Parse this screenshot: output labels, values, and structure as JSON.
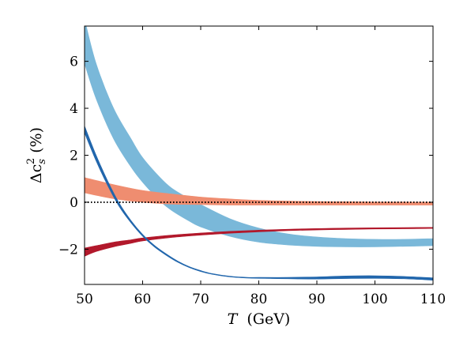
{
  "chart_data": {
    "type": "area",
    "title": "",
    "xlabel_var": "T",
    "xlabel_unit": "(GeV)",
    "ylabel_main": "Δc",
    "ylabel_sup": "2",
    "ylabel_sub": "s",
    "ylabel_unit": "(%)",
    "xlim": [
      50,
      110
    ],
    "ylim": [
      -3.5,
      7.5
    ],
    "xticks": [
      50,
      60,
      70,
      80,
      90,
      100,
      110
    ],
    "xtick_labels": [
      "50",
      "60",
      "70",
      "80",
      "90",
      "100",
      "110"
    ],
    "yticks": [
      -2,
      0,
      2,
      4,
      6
    ],
    "ytick_labels": [
      "−2",
      "0",
      "2",
      "4",
      "6"
    ],
    "grid": false,
    "reference_line": {
      "y": 0,
      "style": "dotted",
      "color": "#000000"
    },
    "series": [
      {
        "kind": "band",
        "color": "#7ab8d9",
        "x": [
          50,
          52,
          55,
          58,
          60,
          63,
          65,
          68,
          70,
          75,
          80,
          85,
          90,
          95,
          100,
          105,
          110
        ],
        "lower": [
          5.9,
          4.4,
          2.7,
          1.5,
          0.85,
          0.05,
          -0.35,
          -0.8,
          -1.05,
          -1.45,
          -1.7,
          -1.82,
          -1.88,
          -1.9,
          -1.9,
          -1.88,
          -1.85
        ],
        "upper": [
          7.8,
          5.9,
          4.0,
          2.7,
          1.9,
          1.05,
          0.6,
          0.15,
          -0.1,
          -0.7,
          -1.1,
          -1.35,
          -1.48,
          -1.55,
          -1.58,
          -1.58,
          -1.55
        ]
      },
      {
        "kind": "band",
        "color": "#ef8d70",
        "x": [
          50,
          55,
          60,
          65,
          70,
          75,
          80,
          85,
          90,
          95,
          100,
          105,
          110
        ],
        "lower": [
          0.4,
          0.15,
          0.0,
          -0.08,
          -0.1,
          -0.12,
          -0.12,
          -0.12,
          -0.12,
          -0.12,
          -0.12,
          -0.12,
          -0.12
        ],
        "upper": [
          1.05,
          0.75,
          0.5,
          0.35,
          0.22,
          0.14,
          0.08,
          0.05,
          0.03,
          0.02,
          0.01,
          0.01,
          0.0
        ]
      },
      {
        "kind": "band",
        "color": "#b2182b",
        "x": [
          50,
          52,
          55,
          58,
          60,
          65,
          70,
          75,
          80,
          85,
          90,
          95,
          100,
          105,
          110
        ],
        "lower": [
          -2.3,
          -2.1,
          -1.9,
          -1.75,
          -1.65,
          -1.5,
          -1.4,
          -1.32,
          -1.26,
          -1.21,
          -1.18,
          -1.16,
          -1.14,
          -1.13,
          -1.12
        ],
        "upper": [
          -1.95,
          -1.85,
          -1.7,
          -1.6,
          -1.52,
          -1.4,
          -1.31,
          -1.24,
          -1.19,
          -1.15,
          -1.12,
          -1.1,
          -1.09,
          -1.08,
          -1.07
        ]
      },
      {
        "kind": "band",
        "color": "#2166ac",
        "x": [
          50,
          52,
          54,
          56,
          58,
          60,
          62,
          64,
          66,
          68,
          70,
          72,
          75,
          78,
          80,
          85,
          90,
          95,
          100,
          105,
          110
        ],
        "lower": [
          2.95,
          1.75,
          0.7,
          -0.2,
          -0.88,
          -1.45,
          -1.9,
          -2.25,
          -2.55,
          -2.78,
          -2.95,
          -3.07,
          -3.18,
          -3.23,
          -3.24,
          -3.26,
          -3.27,
          -3.25,
          -3.24,
          -3.26,
          -3.32
        ],
        "upper": [
          3.25,
          2.0,
          0.9,
          -0.05,
          -0.78,
          -1.37,
          -1.83,
          -2.19,
          -2.5,
          -2.74,
          -2.91,
          -3.04,
          -3.15,
          -3.2,
          -3.2,
          -3.2,
          -3.18,
          -3.14,
          -3.13,
          -3.16,
          -3.22
        ]
      }
    ]
  }
}
